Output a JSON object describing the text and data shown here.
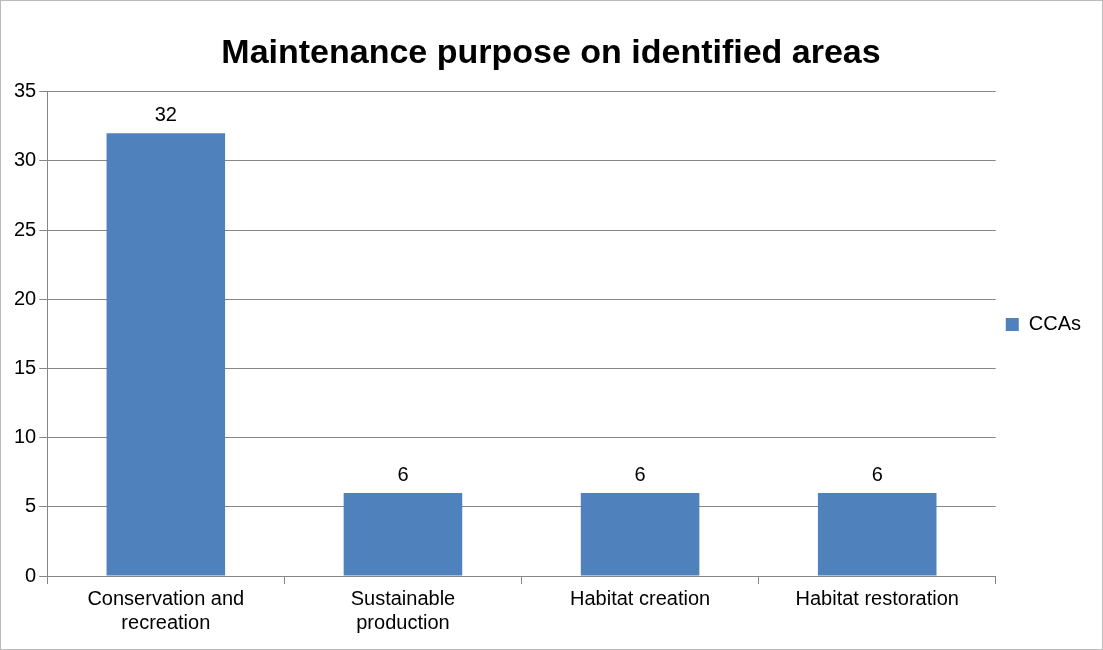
{
  "chart_data": {
    "type": "bar",
    "title": "Maintenance purpose on identified areas",
    "categories": [
      "Conservation and recreation",
      "Sustainable production",
      "Habitat creation",
      "Habitat restoration"
    ],
    "series": [
      {
        "name": "CCAs",
        "color": "#4f81bd",
        "values": [
          32,
          6,
          6,
          6
        ]
      }
    ],
    "ylim": [
      0,
      35
    ],
    "yticks": [
      0,
      5,
      10,
      15,
      20,
      25,
      30,
      35
    ],
    "grid": "y",
    "legend": "right",
    "data_labels": true
  }
}
